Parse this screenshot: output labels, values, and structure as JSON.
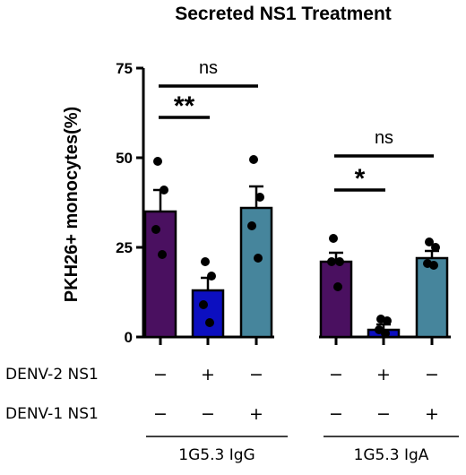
{
  "chart_data": {
    "type": "bar",
    "title": "Secreted NS1 Treatment",
    "ylabel": "PKH26+ monocytes(%)",
    "ylim": [
      0,
      75
    ],
    "yticks": [
      "0",
      "25",
      "50",
      "75"
    ],
    "groups": [
      {
        "label": "1G5.3 IgG",
        "bars": [
          {
            "mean": 35,
            "sem": 6,
            "color": "#4a1060",
            "points": [
              49,
              41,
              30,
              23
            ]
          },
          {
            "mean": 13,
            "sem": 3.5,
            "color": "#0c0fc0",
            "points": [
              21,
              17,
              9,
              4
            ]
          },
          {
            "mean": 36,
            "sem": 6,
            "color": "#46859c",
            "points": [
              49.5,
              39,
              31,
              22
            ]
          }
        ]
      },
      {
        "label": "1G5.3 IgA",
        "bars": [
          {
            "mean": 21,
            "sem": 2.5,
            "color": "#4a1060",
            "points": [
              27.5,
              21,
              21,
              14
            ]
          },
          {
            "mean": 2,
            "sem": 1.5,
            "color": "#0c0fc0",
            "points": [
              5,
              4.5,
              2,
              1
            ]
          },
          {
            "mean": 22,
            "sem": 2,
            "color": "#46859c",
            "points": [
              26.5,
              25,
              20.5,
              20
            ]
          }
        ]
      }
    ],
    "significance": [
      {
        "group": 0,
        "from": 0,
        "to": 2,
        "label": "ns"
      },
      {
        "group": 0,
        "from": 0,
        "to": 1,
        "label": "**"
      },
      {
        "group": 1,
        "from": 0,
        "to": 2,
        "label": "ns"
      },
      {
        "group": 1,
        "from": 0,
        "to": 1,
        "label": "*"
      }
    ],
    "conditions": [
      {
        "label": "DENV-2 NS1",
        "marks": [
          "−",
          "+",
          "−",
          "−",
          "+",
          "−"
        ]
      },
      {
        "label": "DENV-1 NS1",
        "marks": [
          "−",
          "−",
          "+",
          "−",
          "−",
          "+"
        ]
      }
    ]
  }
}
